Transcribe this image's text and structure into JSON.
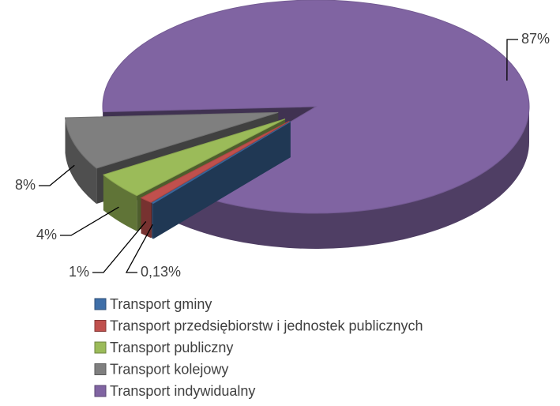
{
  "chart_data": {
    "type": "pie",
    "categories": [
      "Transport gminy",
      "Transport przedsiębiorstw i jednostek publicznych",
      "Transport publiczny",
      "Transport kolejowy",
      "Transport indywidualny"
    ],
    "values": [
      0.13,
      1,
      4,
      8,
      87
    ],
    "value_labels": [
      "0,13%",
      "1%",
      "4%",
      "8%",
      "87%"
    ],
    "colors": [
      "#3f6fa8",
      "#c0504d",
      "#9bbb59",
      "#7f7f7f",
      "#8064a2"
    ],
    "legend": "bottom",
    "exploded": [
      true,
      true,
      true,
      true,
      false
    ]
  }
}
